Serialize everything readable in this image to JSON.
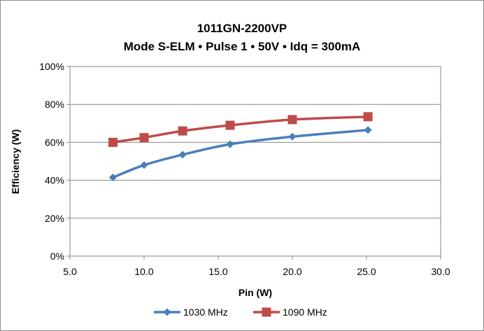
{
  "chart_data": {
    "type": "line",
    "title": "1011GN-2200VP",
    "subtitle": "Mode S-ELM • Pulse 1 • 50V • Idq = 300mA",
    "xlabel": "Pin (W)",
    "ylabel": "Efficiency (W)",
    "xlim": [
      5.0,
      30.0
    ],
    "ylim": [
      0,
      100
    ],
    "x_ticks": [
      "5.0",
      "10.0",
      "15.0",
      "20.0",
      "25.0",
      "30.0"
    ],
    "y_ticks": [
      "0%",
      "20%",
      "40%",
      "60%",
      "80%",
      "100%"
    ],
    "grid": true,
    "legend_position": "bottom",
    "series": [
      {
        "name": "1030 MHz",
        "color": "#4a7ebb",
        "marker": "diamond",
        "x": [
          7.9,
          10.0,
          12.6,
          15.8,
          20.0,
          25.1
        ],
        "y": [
          41.5,
          48,
          53.5,
          59,
          63,
          66.5
        ]
      },
      {
        "name": "1090 MHz",
        "color": "#be4b48",
        "marker": "square",
        "x": [
          7.9,
          10.0,
          12.6,
          15.8,
          20.0,
          25.1
        ],
        "y": [
          60,
          62.5,
          66,
          69,
          72,
          73.5
        ]
      }
    ]
  }
}
